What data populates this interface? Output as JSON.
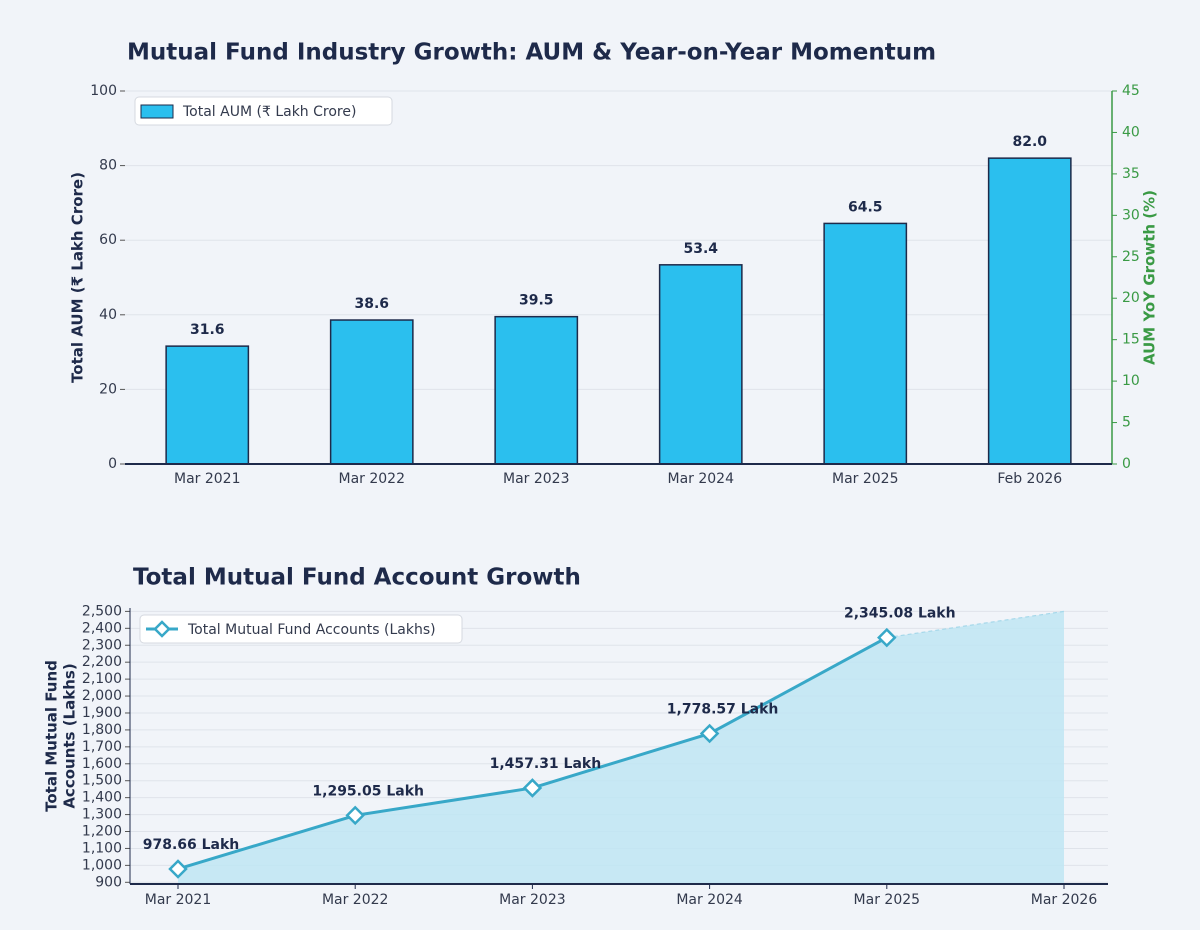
{
  "chart_data": [
    {
      "type": "bar",
      "title": "Mutual Fund Industry Growth: AUM & Year-on-Year Momentum",
      "y_label": "Total AUM (₹ Lakh Crore)",
      "y2_label": "AUM YoY Growth (%)",
      "categories": [
        "Mar 2021",
        "Mar 2022",
        "Mar 2023",
        "Mar 2024",
        "Mar 2025",
        "Feb 2026"
      ],
      "series": [
        {
          "name": "Total AUM (₹ Lakh Crore)",
          "color": "#2bbfee",
          "values": [
            31.6,
            38.6,
            39.5,
            53.4,
            64.5,
            82.0
          ],
          "value_labels": [
            "31.6",
            "38.6",
            "39.5",
            "53.4",
            "64.5",
            "82.0"
          ]
        }
      ],
      "ylim": [
        0,
        100
      ],
      "yticks": [
        0,
        20,
        40,
        60,
        80,
        100
      ],
      "y2lim": [
        0,
        45
      ],
      "y2ticks": [
        0,
        5,
        10,
        15,
        20,
        25,
        30,
        35,
        40,
        45
      ],
      "y2_color": "#3a9a45",
      "grid": true,
      "legend": "upper left"
    },
    {
      "type": "line",
      "title": "Total Mutual Fund Account Growth",
      "y_label_lines": [
        "Total Mutual Fund",
        "Accounts (Lakhs)"
      ],
      "categories": [
        "Mar 2021",
        "Mar 2022",
        "Mar 2023",
        "Mar 2024",
        "Mar 2025",
        "Mar 2026"
      ],
      "series": [
        {
          "name": "Total Mutual Fund Accounts (Lakhs)",
          "color": "#38a8c8",
          "values": [
            978.66,
            1295.05,
            1457.31,
            1778.57,
            2345.08,
            2500
          ],
          "value_labels": [
            "978.66 Lakh",
            "1,295.05 Lakh",
            "1,457.31 Lakh",
            "1,778.57 Lakh",
            "2,345.08 Lakh",
            null
          ]
        }
      ],
      "ylim": [
        890,
        2520
      ],
      "yticks": [
        900,
        {
          "value": 1000,
          "label": "1,000"
        },
        {
          "value": 1100,
          "label": "1,100"
        },
        {
          "value": 1200,
          "label": "1,200"
        },
        {
          "value": 1300,
          "label": "1,300"
        },
        {
          "value": 1400,
          "label": "1,400"
        },
        {
          "value": 1500,
          "label": "1,500"
        },
        {
          "value": 1600,
          "label": "1,600"
        },
        {
          "value": 1700,
          "label": "1,700"
        },
        {
          "value": 1800,
          "label": "1,800"
        },
        {
          "value": 1900,
          "label": "1,900"
        },
        {
          "value": 2000,
          "label": "2,000"
        },
        {
          "value": 2100,
          "label": "2,100"
        },
        {
          "value": 2200,
          "label": "2,200"
        },
        {
          "value": 2300,
          "label": "2,300"
        },
        {
          "value": 2400,
          "label": "2,400"
        },
        {
          "value": 2500,
          "label": "2,500"
        }
      ],
      "grid": true,
      "area": true,
      "legend": "upper left"
    }
  ]
}
